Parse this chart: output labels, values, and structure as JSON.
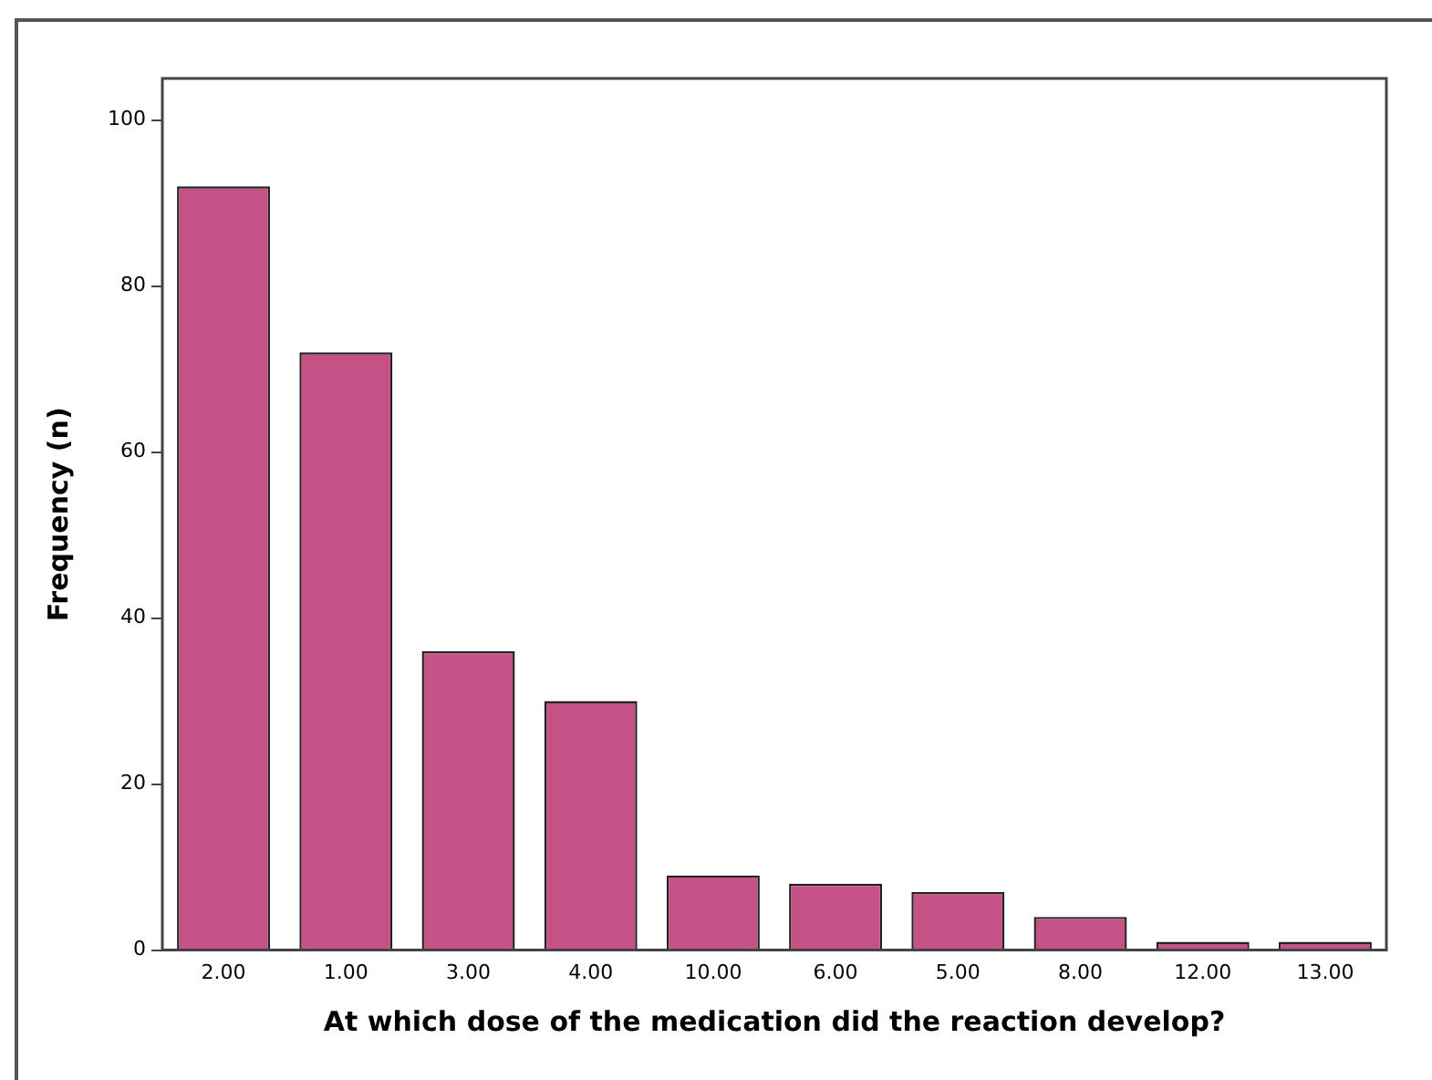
{
  "chart_data": {
    "type": "bar",
    "xlabel": "At which dose of the medication did the reaction develop?",
    "ylabel": "Frequency (n)",
    "categories": [
      "2.00",
      "1.00",
      "3.00",
      "4.00",
      "10.00",
      "6.00",
      "5.00",
      "8.00",
      "12.00",
      "13.00"
    ],
    "values": [
      92,
      72,
      36,
      30,
      9,
      8,
      7,
      4,
      1,
      1
    ],
    "color": "#c45287",
    "ylim": [
      0,
      105
    ],
    "yticks": [
      0,
      20,
      40,
      60,
      80,
      100
    ],
    "grid": false,
    "legend": false
  }
}
